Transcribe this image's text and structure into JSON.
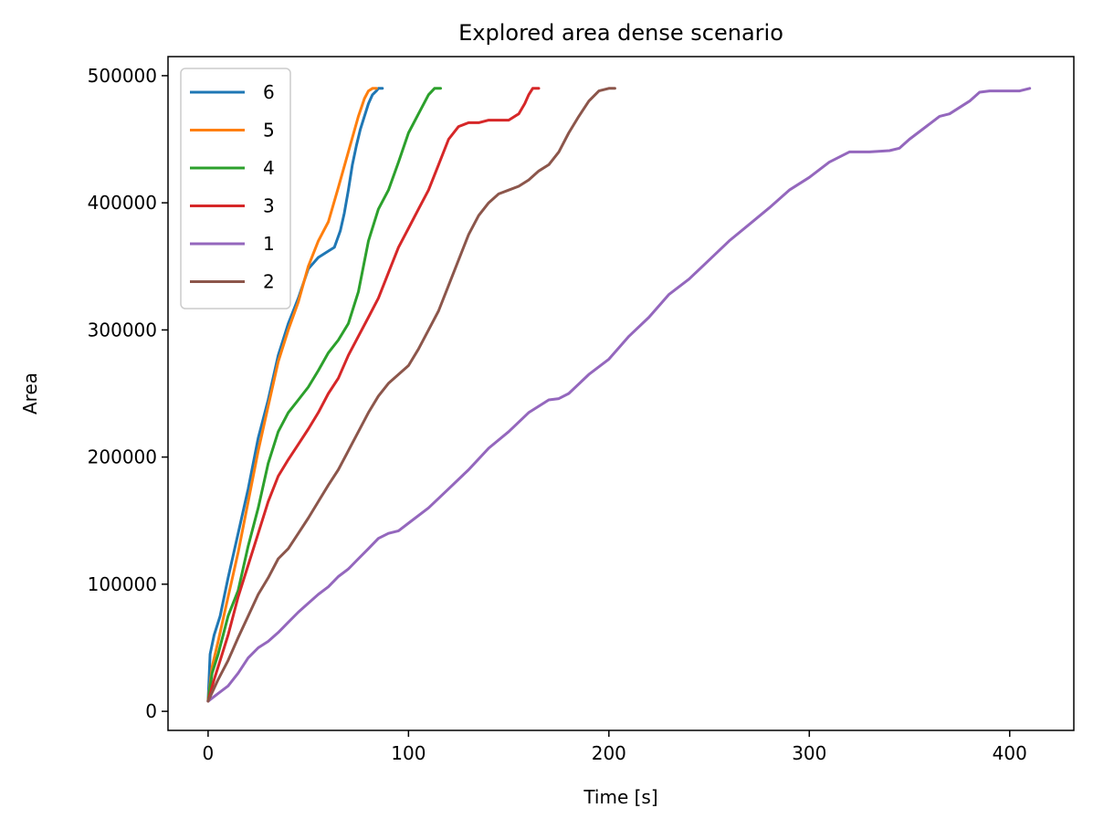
{
  "chart_data": {
    "type": "line",
    "title": "Explored area dense scenario",
    "xlabel": "Time [s]",
    "ylabel": "Area",
    "xlim": [
      -20,
      432
    ],
    "ylim": [
      -15000,
      515000
    ],
    "xticks": [
      0,
      100,
      200,
      300,
      400
    ],
    "yticks": [
      0,
      100000,
      200000,
      300000,
      400000,
      500000
    ],
    "grid": false,
    "legend_position": "top-left",
    "series": [
      {
        "name": "6",
        "color": "#1f77b4",
        "x": [
          0,
          1,
          3,
          6,
          10,
          15,
          20,
          25,
          30,
          35,
          40,
          45,
          50,
          55,
          60,
          63,
          66,
          68,
          70,
          72,
          74,
          76,
          78,
          80,
          82,
          84,
          85,
          87
        ],
        "y": [
          8000,
          45000,
          60000,
          75000,
          105000,
          140000,
          175000,
          215000,
          245000,
          280000,
          305000,
          325000,
          348000,
          357000,
          362000,
          365000,
          378000,
          392000,
          410000,
          430000,
          445000,
          458000,
          468000,
          478000,
          485000,
          488000,
          490000,
          490000
        ]
      },
      {
        "name": "5",
        "color": "#ff7f0e",
        "x": [
          0,
          2,
          5,
          10,
          15,
          20,
          25,
          30,
          35,
          40,
          45,
          50,
          55,
          60,
          65,
          70,
          75,
          78,
          80,
          82,
          84
        ],
        "y": [
          8000,
          35000,
          55000,
          90000,
          125000,
          165000,
          205000,
          240000,
          275000,
          300000,
          322000,
          350000,
          370000,
          385000,
          412000,
          440000,
          468000,
          482000,
          488000,
          490000,
          490000
        ]
      },
      {
        "name": "4",
        "color": "#2ca02c",
        "x": [
          0,
          2,
          5,
          10,
          15,
          20,
          25,
          30,
          35,
          40,
          45,
          50,
          55,
          60,
          65,
          70,
          75,
          80,
          85,
          90,
          95,
          100,
          105,
          110,
          113,
          116
        ],
        "y": [
          8000,
          30000,
          45000,
          75000,
          95000,
          130000,
          160000,
          195000,
          220000,
          235000,
          245000,
          255000,
          268000,
          282000,
          292000,
          305000,
          330000,
          370000,
          395000,
          410000,
          432000,
          455000,
          470000,
          485000,
          490000,
          490000
        ]
      },
      {
        "name": "3",
        "color": "#d62728",
        "x": [
          0,
          3,
          6,
          10,
          15,
          20,
          25,
          30,
          35,
          40,
          45,
          50,
          55,
          60,
          65,
          70,
          75,
          80,
          85,
          90,
          95,
          100,
          105,
          110,
          115,
          120,
          125,
          130,
          135,
          140,
          145,
          150,
          155,
          158,
          160,
          162,
          165
        ],
        "y": [
          8000,
          25000,
          40000,
          60000,
          90000,
          115000,
          140000,
          165000,
          185000,
          198000,
          210000,
          222000,
          235000,
          250000,
          262000,
          280000,
          295000,
          310000,
          325000,
          345000,
          365000,
          380000,
          395000,
          410000,
          430000,
          450000,
          460000,
          463000,
          463000,
          465000,
          465000,
          465000,
          470000,
          478000,
          485000,
          490000,
          490000
        ]
      },
      {
        "name": "1",
        "color": "#9467bd",
        "x": [
          0,
          5,
          10,
          15,
          20,
          25,
          30,
          35,
          40,
          45,
          50,
          55,
          60,
          65,
          70,
          75,
          80,
          85,
          90,
          95,
          100,
          110,
          120,
          130,
          140,
          150,
          160,
          170,
          175,
          180,
          190,
          200,
          210,
          220,
          230,
          240,
          250,
          260,
          270,
          280,
          290,
          300,
          310,
          320,
          330,
          340,
          345,
          350,
          360,
          365,
          370,
          380,
          385,
          390,
          400,
          405,
          410
        ],
        "y": [
          8000,
          14000,
          20000,
          30000,
          42000,
          50000,
          55000,
          62000,
          70000,
          78000,
          85000,
          92000,
          98000,
          106000,
          112000,
          120000,
          128000,
          136000,
          140000,
          142000,
          148000,
          160000,
          175000,
          190000,
          207000,
          220000,
          235000,
          245000,
          246000,
          250000,
          265000,
          277000,
          295000,
          310000,
          328000,
          340000,
          355000,
          370000,
          383000,
          396000,
          410000,
          420000,
          432000,
          440000,
          440000,
          441000,
          443000,
          450000,
          462000,
          468000,
          470000,
          480000,
          487000,
          488000,
          488000,
          488000,
          490000
        ]
      },
      {
        "name": "2",
        "color": "#8c564b",
        "x": [
          0,
          5,
          10,
          15,
          20,
          25,
          30,
          35,
          40,
          45,
          50,
          55,
          60,
          65,
          70,
          75,
          80,
          85,
          90,
          95,
          100,
          105,
          110,
          115,
          120,
          125,
          130,
          135,
          140,
          145,
          150,
          155,
          160,
          165,
          170,
          175,
          180,
          185,
          190,
          195,
          200,
          203
        ],
        "y": [
          8000,
          25000,
          40000,
          58000,
          75000,
          92000,
          105000,
          120000,
          128000,
          140000,
          152000,
          165000,
          178000,
          190000,
          205000,
          220000,
          235000,
          248000,
          258000,
          265000,
          272000,
          285000,
          300000,
          315000,
          335000,
          355000,
          375000,
          390000,
          400000,
          407000,
          410000,
          413000,
          418000,
          425000,
          430000,
          440000,
          455000,
          468000,
          480000,
          488000,
          490000,
          490000
        ]
      }
    ]
  }
}
